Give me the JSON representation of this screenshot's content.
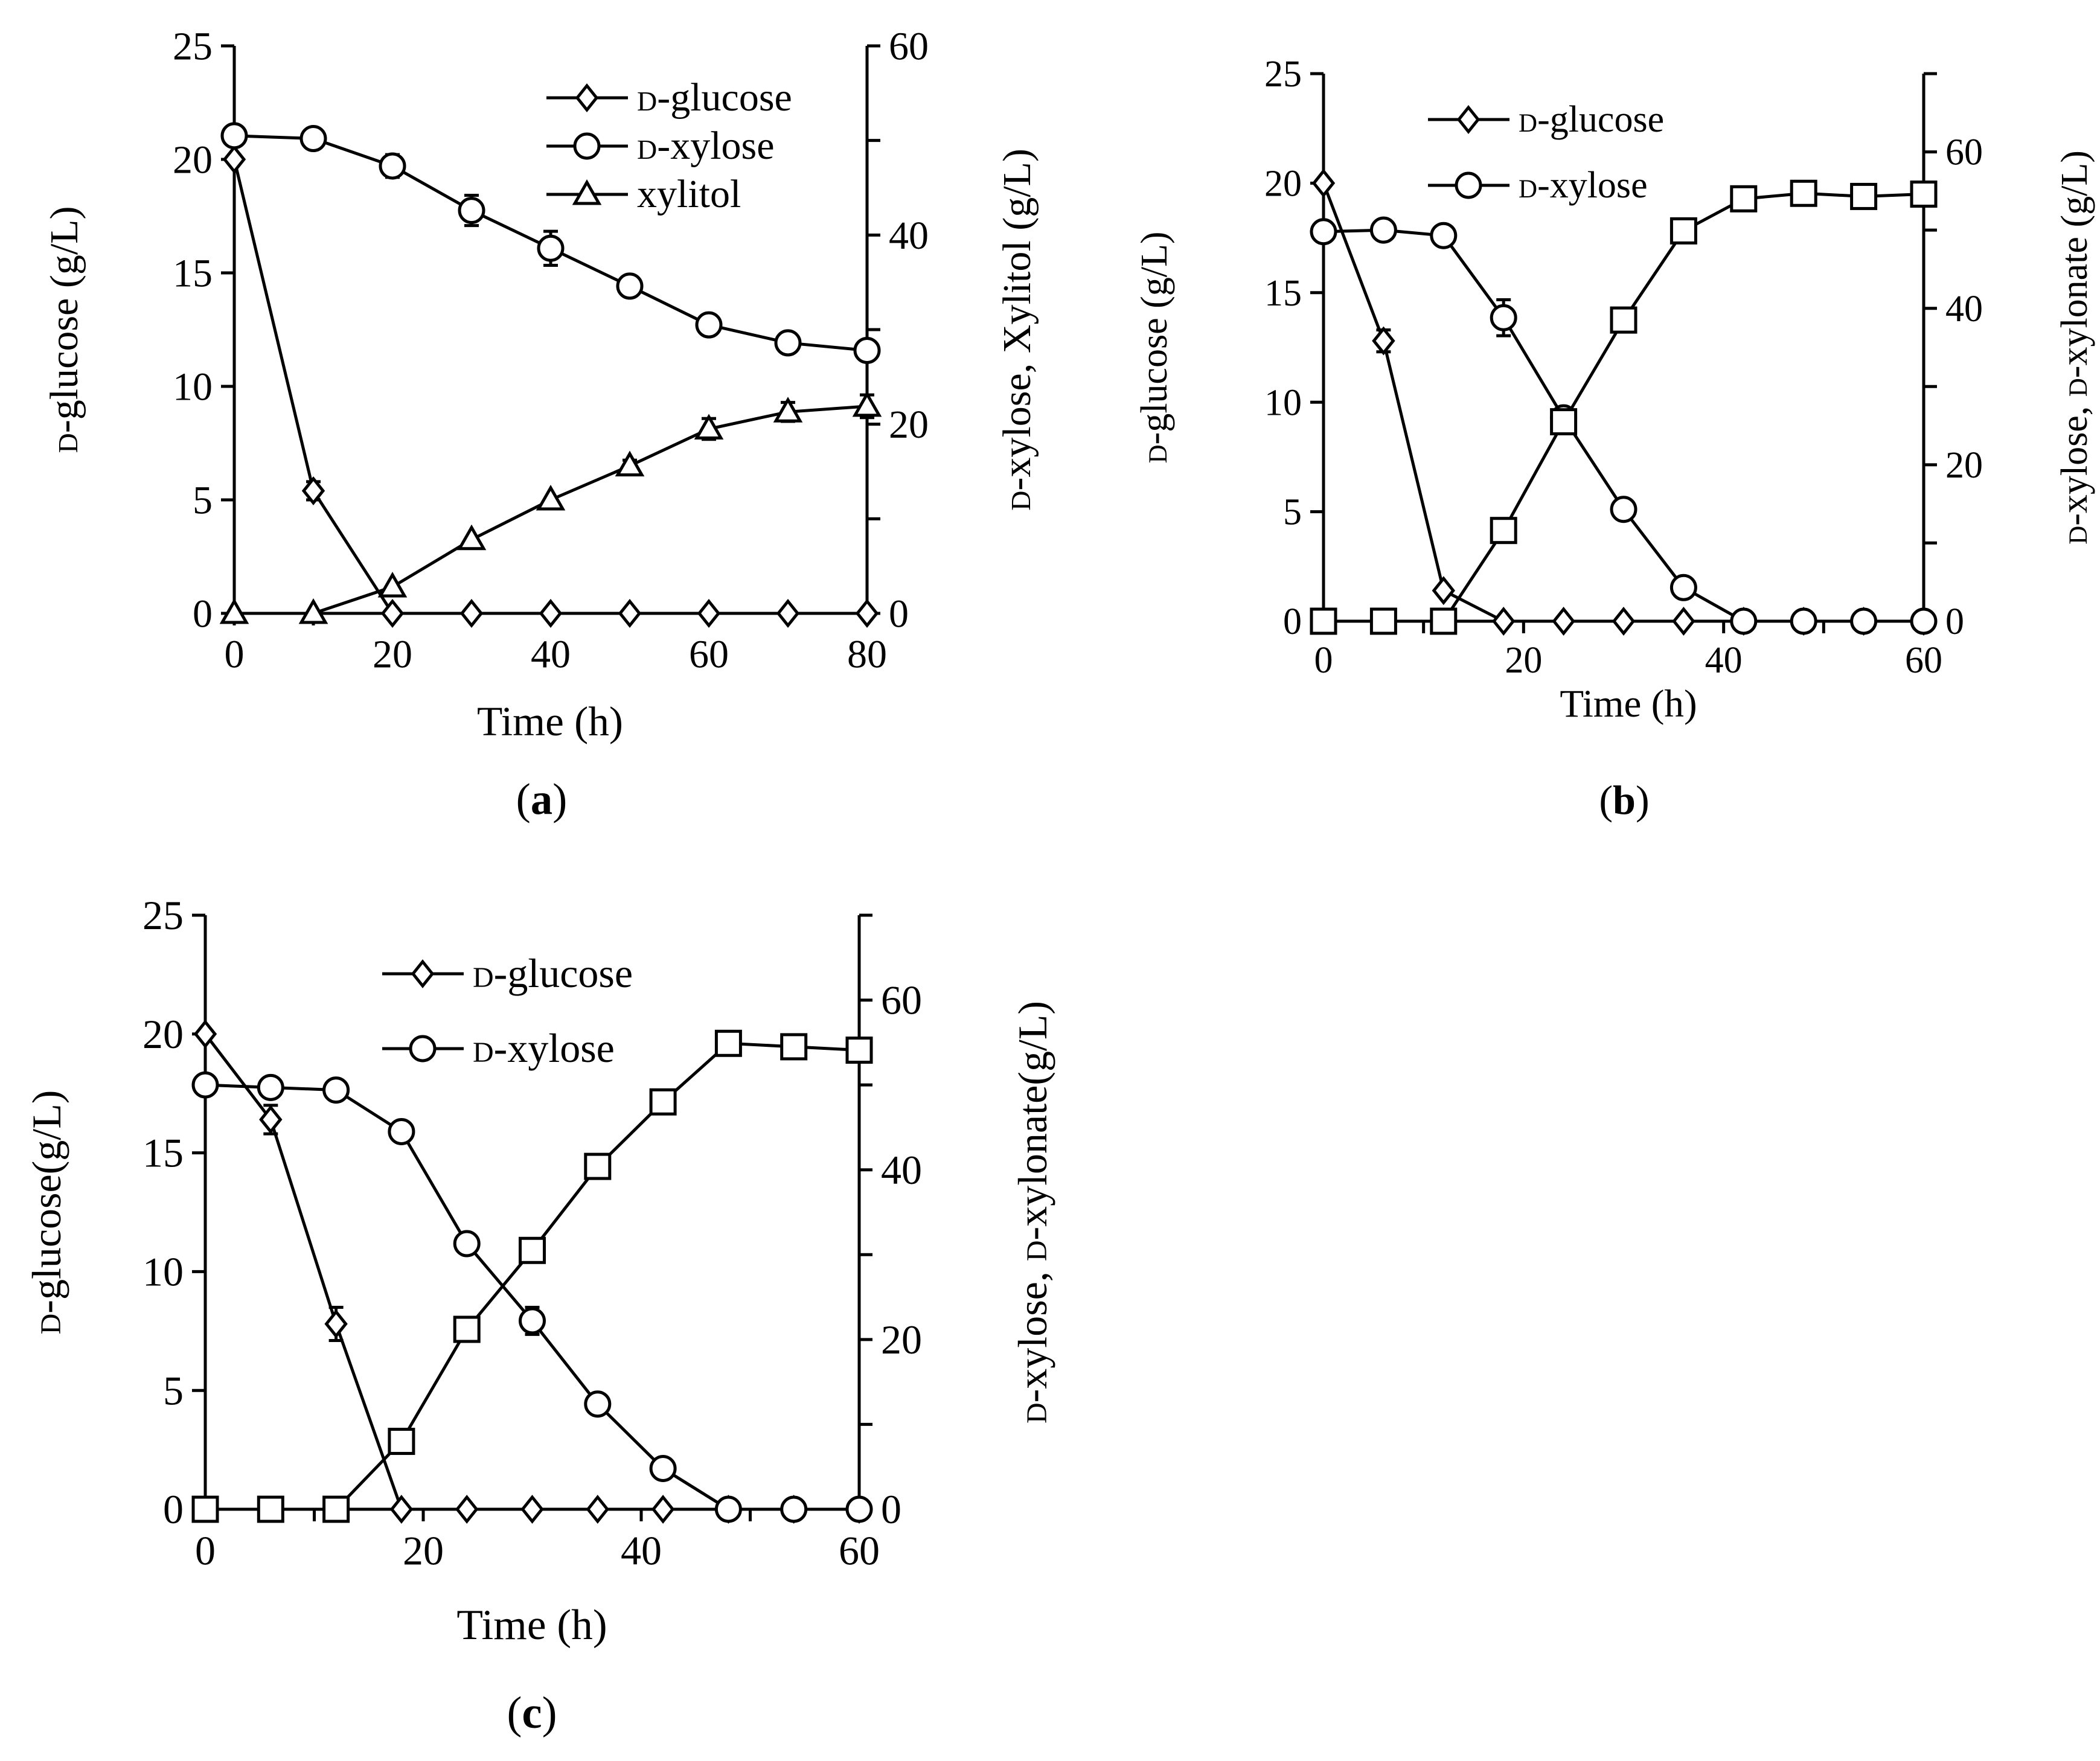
{
  "chart_data": [
    {
      "id": "a",
      "type": "line",
      "panel_label": "a",
      "title": "",
      "xlabel": "Time (h)",
      "ylabel_left": [
        {
          "text": "d",
          "sc": true
        },
        {
          "text": "-glucose (g/L)",
          "sc": false
        }
      ],
      "ylabel_right": [
        {
          "text": "d",
          "sc": true
        },
        {
          "text": "-xylose, Xylitol (g/L)",
          "sc": false
        }
      ],
      "xlim": [
        0,
        80
      ],
      "xticks": [
        0,
        20,
        40,
        60,
        80
      ],
      "ylim_left": [
        0,
        25
      ],
      "yticks_left": [
        0,
        5,
        10,
        15,
        20,
        25
      ],
      "ylim_right": [
        0,
        60
      ],
      "yticks_right": [
        0,
        20,
        40,
        60
      ],
      "legend_position": "top-right",
      "series": [
        {
          "name": "d-glucose",
          "name_parts": [
            {
              "text": "d",
              "sc": true
            },
            {
              "text": "-glucose",
              "sc": false
            }
          ],
          "marker": "diamond",
          "axis": "left",
          "in_legend": true,
          "x": [
            0,
            10,
            20,
            30,
            40,
            50,
            60,
            70,
            80
          ],
          "y": [
            20.0,
            5.4,
            0,
            0,
            0,
            0,
            0,
            0,
            0
          ],
          "err": [
            0,
            0.4,
            0,
            0,
            0,
            0,
            0,
            0,
            0
          ]
        },
        {
          "name": "d-xylose",
          "name_parts": [
            {
              "text": "d",
              "sc": true
            },
            {
              "text": "-xylose",
              "sc": false
            }
          ],
          "marker": "circle",
          "axis": "right",
          "in_legend": true,
          "x": [
            0,
            10,
            20,
            30,
            40,
            50,
            60,
            70,
            80
          ],
          "y": [
            50.5,
            50.2,
            47.3,
            42.6,
            38.6,
            34.6,
            30.5,
            28.6,
            27.8
          ],
          "err": [
            0,
            0,
            1.2,
            1.6,
            1.8,
            1.0,
            0,
            1.0,
            0
          ]
        },
        {
          "name": "xylitol",
          "name_parts": [
            {
              "text": "xylitol",
              "sc": false
            }
          ],
          "marker": "triangle",
          "axis": "right",
          "in_legend": true,
          "x": [
            0,
            10,
            20,
            30,
            40,
            50,
            60,
            70,
            80
          ],
          "y": [
            0,
            0,
            2.8,
            7.8,
            12.0,
            15.6,
            19.5,
            21.3,
            21.9
          ],
          "err": [
            0,
            0,
            0,
            0,
            0,
            0.6,
            1.1,
            1.0,
            1.2
          ]
        }
      ]
    },
    {
      "id": "b",
      "type": "line",
      "panel_label": "b",
      "title": "",
      "xlabel": "Time (h)",
      "ylabel_left": [
        {
          "text": "d",
          "sc": true
        },
        {
          "text": "-glucose (g/L)",
          "sc": false
        }
      ],
      "ylabel_right": [
        {
          "text": "d",
          "sc": true
        },
        {
          "text": "-xylose, ",
          "sc": false
        },
        {
          "text": "d",
          "sc": true
        },
        {
          "text": "-xylonate (g/L)",
          "sc": false
        }
      ],
      "xlim": [
        0,
        60
      ],
      "xticks": [
        0,
        20,
        40,
        60
      ],
      "ylim_left": [
        0,
        25
      ],
      "yticks_left": [
        0,
        5,
        10,
        15,
        20,
        25
      ],
      "ylim_right": [
        0,
        70
      ],
      "yticks_right": [
        0,
        20,
        40,
        60
      ],
      "legend_position": "top-left",
      "series": [
        {
          "name": "d-glucose",
          "name_parts": [
            {
              "text": "d",
              "sc": true
            },
            {
              "text": "-glucose",
              "sc": false
            }
          ],
          "marker": "diamond",
          "axis": "left",
          "in_legend": true,
          "x": [
            0,
            6,
            12,
            18,
            24,
            30,
            36,
            42,
            48,
            54,
            60
          ],
          "y": [
            20.0,
            12.8,
            1.4,
            0,
            0,
            0,
            0,
            0,
            0,
            0,
            0
          ],
          "err": [
            0,
            0.5,
            0,
            0,
            0,
            0,
            0,
            0,
            0,
            0,
            0
          ]
        },
        {
          "name": "d-xylose",
          "name_parts": [
            {
              "text": "d",
              "sc": true
            },
            {
              "text": "-xylose",
              "sc": false
            }
          ],
          "marker": "circle",
          "axis": "right",
          "in_legend": true,
          "x": [
            0,
            6,
            12,
            18,
            24,
            30,
            36,
            42,
            48,
            54,
            60
          ],
          "y": [
            49.8,
            50.0,
            49.3,
            38.8,
            26.0,
            14.3,
            4.3,
            0,
            0,
            0,
            0
          ],
          "err": [
            0,
            0,
            0,
            2.3,
            0.9,
            1.2,
            0,
            0,
            0,
            0,
            0
          ]
        },
        {
          "name": "d-xylonate",
          "name_parts": [
            {
              "text": "d",
              "sc": true
            },
            {
              "text": "-xylonate",
              "sc": false
            }
          ],
          "marker": "square",
          "axis": "right",
          "in_legend": false,
          "x": [
            0,
            6,
            12,
            18,
            24,
            30,
            36,
            42,
            48,
            54,
            60
          ],
          "y": [
            0,
            0,
            0,
            11.6,
            25.5,
            38.5,
            49.9,
            54.0,
            54.7,
            54.3,
            54.6
          ],
          "err": [
            0,
            0,
            0,
            0,
            0,
            1.2,
            0,
            0,
            0,
            1.0,
            0
          ]
        }
      ]
    },
    {
      "id": "c",
      "type": "line",
      "panel_label": "c",
      "title": "",
      "xlabel": "Time (h)",
      "ylabel_left": [
        {
          "text": "d",
          "sc": true
        },
        {
          "text": "-glucose(g/L)",
          "sc": false
        }
      ],
      "ylabel_right": [
        {
          "text": "d",
          "sc": true
        },
        {
          "text": "-xylose, ",
          "sc": false
        },
        {
          "text": "d",
          "sc": true
        },
        {
          "text": "-xylonate(g/L)",
          "sc": false
        }
      ],
      "xlim": [
        0,
        60
      ],
      "xticks": [
        0,
        20,
        40,
        60
      ],
      "ylim_left": [
        0,
        25
      ],
      "yticks_left": [
        0,
        5,
        10,
        15,
        20,
        25
      ],
      "ylim_right": [
        0,
        70
      ],
      "yticks_right": [
        0,
        20,
        40,
        60
      ],
      "legend_position": "top-center",
      "series": [
        {
          "name": "d-glucose",
          "name_parts": [
            {
              "text": "d",
              "sc": true
            },
            {
              "text": "-glucose",
              "sc": false
            }
          ],
          "marker": "diamond",
          "axis": "left",
          "in_legend": true,
          "x": [
            0,
            6,
            12,
            18,
            24,
            30,
            36,
            42,
            48,
            54,
            60
          ],
          "y": [
            20.0,
            16.4,
            7.8,
            0,
            0,
            0,
            0,
            0,
            0,
            0,
            0
          ],
          "err": [
            0,
            0.6,
            0.7,
            0,
            0,
            0,
            0,
            0,
            0,
            0,
            0
          ]
        },
        {
          "name": "d-xylose",
          "name_parts": [
            {
              "text": "d",
              "sc": true
            },
            {
              "text": "-xylose",
              "sc": false
            }
          ],
          "marker": "circle",
          "axis": "right",
          "in_legend": true,
          "x": [
            0,
            6,
            12,
            18,
            24,
            30,
            36,
            42,
            48,
            54,
            60
          ],
          "y": [
            50.0,
            49.7,
            49.4,
            44.5,
            31.3,
            22.2,
            12.4,
            4.8,
            0,
            0,
            0
          ],
          "err": [
            0,
            0,
            0,
            1.1,
            0,
            1.6,
            0,
            0,
            0,
            0,
            0
          ]
        },
        {
          "name": "d-xylonate",
          "name_parts": [
            {
              "text": "d",
              "sc": true
            },
            {
              "text": "-xylonate",
              "sc": false
            }
          ],
          "marker": "square",
          "axis": "right",
          "in_legend": false,
          "x": [
            0,
            6,
            12,
            18,
            24,
            30,
            36,
            42,
            48,
            54,
            60
          ],
          "y": [
            0,
            0,
            0,
            8.0,
            21.2,
            30.5,
            40.4,
            48.0,
            54.9,
            54.5,
            54.1
          ],
          "err": [
            0,
            0,
            0,
            0,
            0.9,
            0,
            0,
            0,
            0,
            0,
            0
          ]
        }
      ]
    }
  ]
}
